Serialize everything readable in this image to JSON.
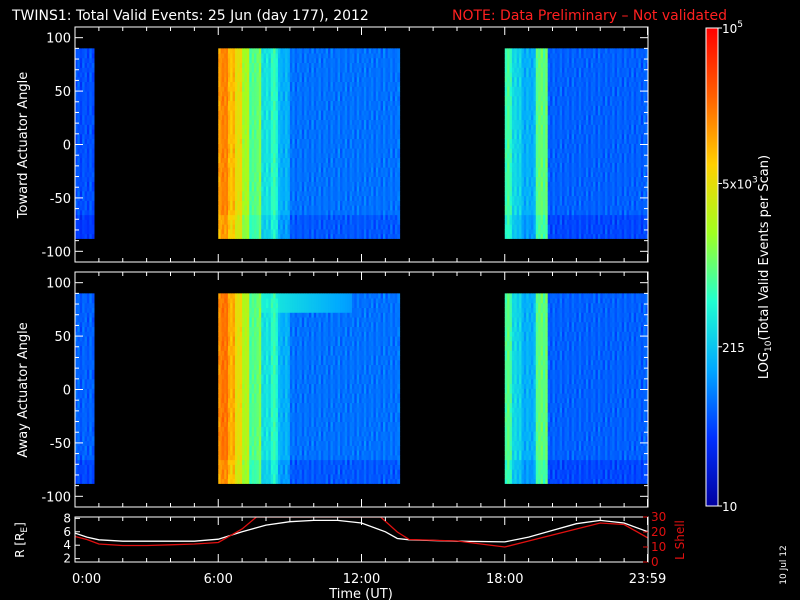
{
  "title": {
    "main": "TWINS1: Total Valid Events: 25 Jun (day 177), 2012",
    "note": "NOTE: Data Preliminary – Not validated"
  },
  "colors": {
    "background": "#000000",
    "axes": "#ffffff",
    "note": "#ff2020",
    "r_line": "#ffffff",
    "lshell_line": "#e01010"
  },
  "colorbar": {
    "label": "LOG10(Total Valid Events per Scan)",
    "label_prefix": "LOG",
    "label_sub": "10",
    "label_rest": "(Total Valid Events per Scan)",
    "ticks": [
      {
        "value": 10,
        "text": "10",
        "sup": ""
      },
      {
        "value": 215,
        "text": "215",
        "sup": ""
      },
      {
        "value": 5000,
        "text": "5x10",
        "sup": "3"
      },
      {
        "value": 100000,
        "text": "10",
        "sup": "5"
      }
    ],
    "range": [
      10,
      100000
    ],
    "scale": "log",
    "colormap": [
      "#0000a0",
      "#0030ff",
      "#00a8ff",
      "#20ffd0",
      "#a0ff20",
      "#ffd000",
      "#ff6000",
      "#ff0000"
    ]
  },
  "side_label": "10 Jul 12",
  "panels": [
    {
      "id": "toward",
      "ylabel": "Toward Actuator Angle",
      "yticks": [
        "100",
        "50",
        "0",
        "-50",
        "-100"
      ],
      "ylim": [
        -110,
        110
      ]
    },
    {
      "id": "away",
      "ylabel": "Away Actuator Angle",
      "yticks": [
        "100",
        "50",
        "0",
        "-50",
        "-100"
      ],
      "ylim": [
        -110,
        110
      ]
    }
  ],
  "orbit_panel": {
    "ylabel_left": "R [RE]",
    "ylabel_left_main": "R [R",
    "ylabel_left_sub": "E",
    "ylabel_left_end": "]",
    "yticks_left": [
      "2",
      "4",
      "6",
      "8"
    ],
    "ylim_left": [
      1.5,
      8.2
    ],
    "ylabel_right": "L Shell",
    "yticks_right": [
      "0",
      "10",
      "20",
      "30"
    ],
    "ylim_right": [
      0,
      30
    ]
  },
  "xaxis": {
    "label": "Time (UT)",
    "ticks": [
      {
        "hour": 0,
        "text": "0:00"
      },
      {
        "hour": 6,
        "text": "6:00"
      },
      {
        "hour": 12,
        "text": "12:00"
      },
      {
        "hour": 18,
        "text": "18:00"
      },
      {
        "hour": 23.98,
        "text": "23:59"
      }
    ],
    "xlim": [
      0,
      24
    ]
  },
  "chart_data": [
    {
      "type": "heatmap",
      "title": "TWINS1: Total Valid Events: 25 Jun (day 177), 2012",
      "xlabel": "Time (UT)",
      "ylabel": "Toward Actuator Angle",
      "xlim": [
        0,
        24
      ],
      "ylim": [
        -110,
        110
      ],
      "angle_range": [
        -88,
        90
      ],
      "data_intervals_hours": [
        [
          0.0,
          0.8
        ],
        [
          6.0,
          13.6
        ],
        [
          18.0,
          24.0
        ]
      ],
      "column_levels": [
        {
          "start": 0.0,
          "end": 0.8,
          "level": 0.18
        },
        {
          "start": 6.0,
          "end": 6.15,
          "level": 0.78
        },
        {
          "start": 6.15,
          "end": 6.4,
          "level": 0.82
        },
        {
          "start": 6.4,
          "end": 6.7,
          "level": 0.74
        },
        {
          "start": 6.7,
          "end": 7.0,
          "level": 0.68
        },
        {
          "start": 7.0,
          "end": 7.3,
          "level": 0.58
        },
        {
          "start": 7.3,
          "end": 7.6,
          "level": 0.48
        },
        {
          "start": 7.6,
          "end": 7.8,
          "level": 0.52
        },
        {
          "start": 7.8,
          "end": 8.2,
          "level": 0.38
        },
        {
          "start": 8.2,
          "end": 8.5,
          "level": 0.44
        },
        {
          "start": 8.5,
          "end": 9.0,
          "level": 0.3
        },
        {
          "start": 9.0,
          "end": 13.6,
          "level": 0.22
        },
        {
          "start": 18.0,
          "end": 18.3,
          "level": 0.46
        },
        {
          "start": 18.3,
          "end": 18.7,
          "level": 0.36
        },
        {
          "start": 18.7,
          "end": 19.3,
          "level": 0.3
        },
        {
          "start": 19.3,
          "end": 19.8,
          "level": 0.5
        },
        {
          "start": 19.8,
          "end": 24.0,
          "level": 0.2
        }
      ]
    },
    {
      "type": "heatmap",
      "title": "",
      "xlabel": "Time (UT)",
      "ylabel": "Away Actuator Angle",
      "xlim": [
        0,
        24
      ],
      "ylim": [
        -110,
        110
      ],
      "angle_range": [
        -88,
        90
      ],
      "data_intervals_hours": [
        [
          0.0,
          0.8
        ],
        [
          6.0,
          13.6
        ],
        [
          18.0,
          24.0
        ]
      ],
      "column_levels": [
        {
          "start": 0.0,
          "end": 0.8,
          "level": 0.2
        },
        {
          "start": 6.0,
          "end": 6.15,
          "level": 0.8
        },
        {
          "start": 6.15,
          "end": 6.4,
          "level": 0.84
        },
        {
          "start": 6.4,
          "end": 6.7,
          "level": 0.76
        },
        {
          "start": 6.7,
          "end": 7.0,
          "level": 0.68
        },
        {
          "start": 7.0,
          "end": 7.3,
          "level": 0.6
        },
        {
          "start": 7.3,
          "end": 7.6,
          "level": 0.48
        },
        {
          "start": 7.6,
          "end": 7.8,
          "level": 0.52
        },
        {
          "start": 7.8,
          "end": 8.2,
          "level": 0.38
        },
        {
          "start": 8.2,
          "end": 8.5,
          "level": 0.44
        },
        {
          "start": 8.5,
          "end": 9.0,
          "level": 0.3
        },
        {
          "start": 9.0,
          "end": 13.6,
          "level": 0.22
        },
        {
          "start": 18.0,
          "end": 18.3,
          "level": 0.48
        },
        {
          "start": 18.3,
          "end": 18.7,
          "level": 0.36
        },
        {
          "start": 18.7,
          "end": 19.3,
          "level": 0.3
        },
        {
          "start": 19.3,
          "end": 19.8,
          "level": 0.5
        },
        {
          "start": 19.8,
          "end": 24.0,
          "level": 0.2
        }
      ],
      "high_angle_band": {
        "angle_min": 70,
        "angle_max": 90,
        "start": 6.6,
        "end": 11.5,
        "level": 0.45
      }
    },
    {
      "type": "line",
      "title": "",
      "xlabel": "Time (UT)",
      "ylabel": "R [RE]",
      "ylabel_right": "L Shell",
      "xlim": [
        0,
        24
      ],
      "ylim": [
        1.5,
        8.2
      ],
      "ylim_right": [
        0,
        30
      ],
      "series": [
        {
          "name": "R",
          "axis": "left",
          "color": "#ffffff",
          "x": [
            0,
            0.5,
            1,
            2,
            3,
            4,
            5,
            6,
            7,
            8,
            9,
            10,
            11,
            12,
            13,
            13.5,
            14,
            16,
            18,
            19,
            20,
            21,
            22,
            23,
            24
          ],
          "y": [
            5.8,
            5.2,
            4.8,
            4.6,
            4.6,
            4.6,
            4.6,
            4.9,
            6.0,
            7.0,
            7.5,
            7.7,
            7.7,
            7.3,
            6.0,
            5.0,
            4.8,
            4.6,
            4.5,
            5.2,
            6.2,
            7.2,
            7.7,
            7.3,
            6.0
          ]
        },
        {
          "name": "L Shell",
          "axis": "right",
          "color": "#e01010",
          "x": [
            0,
            0.5,
            1,
            2,
            3,
            4,
            5,
            6,
            7,
            7.6,
            12.8,
            13.5,
            14,
            16,
            18,
            19,
            20,
            21,
            22,
            23,
            24
          ],
          "y": [
            17,
            15,
            12,
            11,
            11,
            11.5,
            12,
            13,
            22,
            30,
            30,
            20,
            15,
            14,
            10,
            14,
            18,
            22,
            26,
            25,
            16
          ]
        }
      ]
    }
  ]
}
